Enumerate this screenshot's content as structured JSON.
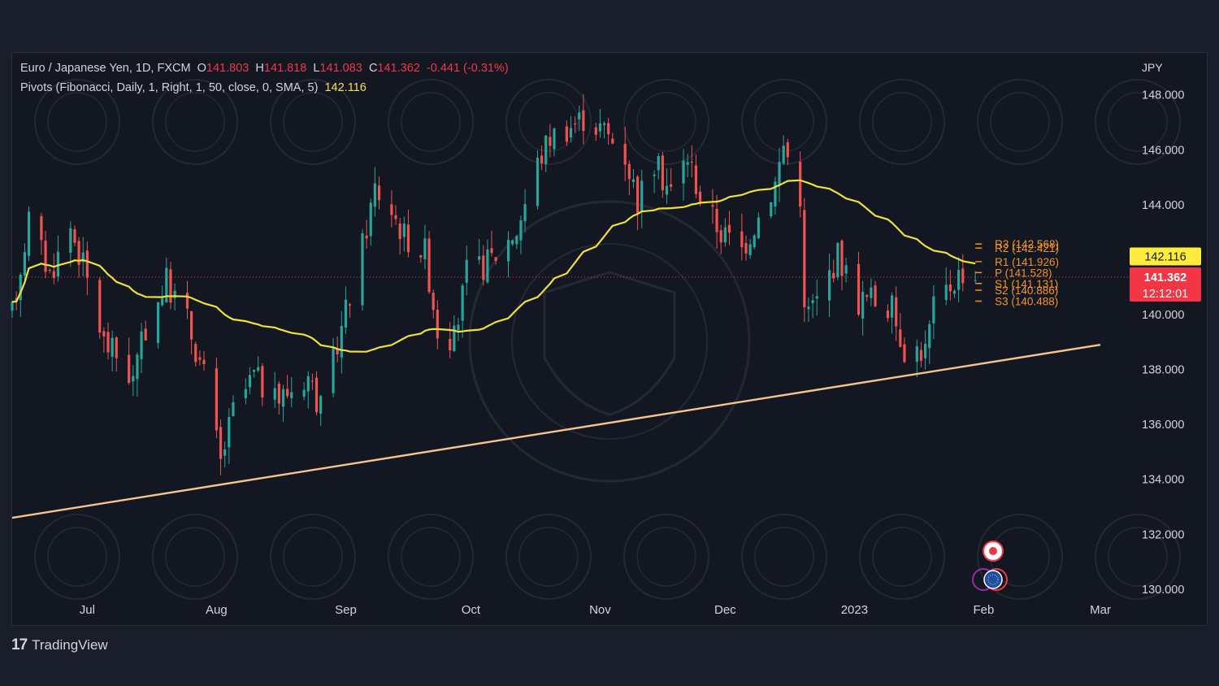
{
  "legend": {
    "symbol": "Euro / Japanese Yen, 1D, FXCM",
    "open_label": "O",
    "open": "141.803",
    "high_label": "H",
    "high": "141.818",
    "low_label": "L",
    "low": "141.083",
    "close_label": "C",
    "close": "141.362",
    "change": "-0.441 (-0.31%)",
    "indicator": "Pivots (Fibonacci, Daily, 1, Right, 1, 50, close, 0, SMA, 5)",
    "indicator_value": "142.116"
  },
  "branding": {
    "name": "TradingView",
    "mark": "17"
  },
  "colors": {
    "background": "#131722",
    "bull": "#26a69a",
    "bear": "#ef5350",
    "ma": "#f0e138",
    "trendline": "#f5c58a",
    "pivot": "#f7931a",
    "price_badge": "#f23645",
    "ma_badge": "#ffeb3b"
  },
  "chart_data": {
    "type": "candlestick",
    "y_axis": {
      "unit": "JPY",
      "ticks": [
        148,
        146,
        144,
        142,
        140,
        138,
        136,
        134,
        132,
        130
      ],
      "tick_labels": [
        "148.000",
        "146.000",
        "144.000",
        "142.000",
        "140.000",
        "138.000",
        "136.000",
        "134.000",
        "132.000",
        "130.000"
      ],
      "range": [
        129.7,
        149.5
      ]
    },
    "x_axis": {
      "ticks": [
        "Jul",
        "Aug",
        "Sep",
        "Oct",
        "Nov",
        "Dec",
        "2023",
        "Feb",
        "Mar"
      ],
      "tick_dates": [
        "2022-07-01",
        "2022-08-01",
        "2022-09-01",
        "2022-10-01",
        "2022-11-01",
        "2022-12-01",
        "2023-01-01",
        "2023-02-01",
        "2023-03-01"
      ],
      "range": [
        "2022-06-13",
        "2023-03-08"
      ]
    },
    "price_badge": {
      "value": "141.362",
      "countdown": "12:12:01"
    },
    "ma_badge": {
      "value": "142.116"
    },
    "pivots": [
      {
        "label": "R3 (142.568)",
        "value": 142.568
      },
      {
        "label": "R2 (142.421)",
        "value": 142.421
      },
      {
        "label": "R1 (141.926)",
        "value": 141.926
      },
      {
        "label": "P (141.528)",
        "value": 141.528
      },
      {
        "label": "S1 (141.131)",
        "value": 141.131
      },
      {
        "label": "S2 (140.886)",
        "value": 140.886
      },
      {
        "label": "S3 (140.488)",
        "value": 140.488
      }
    ],
    "trendline": {
      "from": [
        "2022-06-13",
        132.6
      ],
      "to": [
        "2023-03-01",
        138.9
      ]
    },
    "price_path": [
      [
        "2022-06-13",
        140.0
      ],
      [
        "2022-06-17",
        143.5
      ],
      [
        "2022-06-22",
        141.5
      ],
      [
        "2022-06-27",
        143.2
      ],
      [
        "2022-06-30",
        141.8
      ],
      [
        "2022-07-05",
        139.0
      ],
      [
        "2022-07-08",
        138.5
      ],
      [
        "2022-07-12",
        137.6
      ],
      [
        "2022-07-15",
        139.5
      ],
      [
        "2022-07-20",
        141.2
      ],
      [
        "2022-07-25",
        139.8
      ],
      [
        "2022-07-29",
        137.8
      ],
      [
        "2022-08-02",
        134.6
      ],
      [
        "2022-08-05",
        136.5
      ],
      [
        "2022-08-10",
        137.8
      ],
      [
        "2022-08-15",
        136.8
      ],
      [
        "2022-08-18",
        137.2
      ],
      [
        "2022-08-23",
        137.8
      ],
      [
        "2022-08-26",
        136.5
      ],
      [
        "2022-08-31",
        139.5
      ],
      [
        "2022-09-05",
        142.5
      ],
      [
        "2022-09-08",
        144.6
      ],
      [
        "2022-09-12",
        143.8
      ],
      [
        "2022-09-15",
        142.9
      ],
      [
        "2022-09-20",
        142.3
      ],
      [
        "2022-09-23",
        139.5
      ],
      [
        "2022-09-27",
        139.1
      ],
      [
        "2022-09-30",
        141.5
      ],
      [
        "2022-10-04",
        141.8
      ],
      [
        "2022-10-07",
        142.2
      ],
      [
        "2022-10-12",
        143.1
      ],
      [
        "2022-10-17",
        145.5
      ],
      [
        "2022-10-20",
        146.5
      ],
      [
        "2022-10-25",
        146.9
      ],
      [
        "2022-10-28",
        147.2
      ],
      [
        "2022-11-02",
        146.7
      ],
      [
        "2022-11-07",
        145.8
      ],
      [
        "2022-11-10",
        144.2
      ],
      [
        "2022-11-14",
        145.5
      ],
      [
        "2022-11-18",
        144.5
      ],
      [
        "2022-11-22",
        145.8
      ],
      [
        "2022-11-25",
        144.3
      ],
      [
        "2022-11-30",
        143.0
      ],
      [
        "2022-12-05",
        142.4
      ],
      [
        "2022-12-08",
        143.3
      ],
      [
        "2022-12-13",
        144.8
      ],
      [
        "2022-12-15",
        146.2
      ],
      [
        "2022-12-19",
        144.4
      ],
      [
        "2022-12-20",
        140.0
      ],
      [
        "2022-12-23",
        140.5
      ],
      [
        "2022-12-28",
        142.2
      ],
      [
        "2023-01-02",
        140.5
      ],
      [
        "2023-01-05",
        140.6
      ],
      [
        "2023-01-10",
        140.2
      ],
      [
        "2023-01-13",
        138.8
      ],
      [
        "2023-01-18",
        138.7
      ],
      [
        "2023-01-20",
        140.2
      ],
      [
        "2023-01-25",
        141.3
      ],
      [
        "2023-01-27",
        141.6
      ],
      [
        "2023-01-30",
        141.4
      ]
    ]
  }
}
